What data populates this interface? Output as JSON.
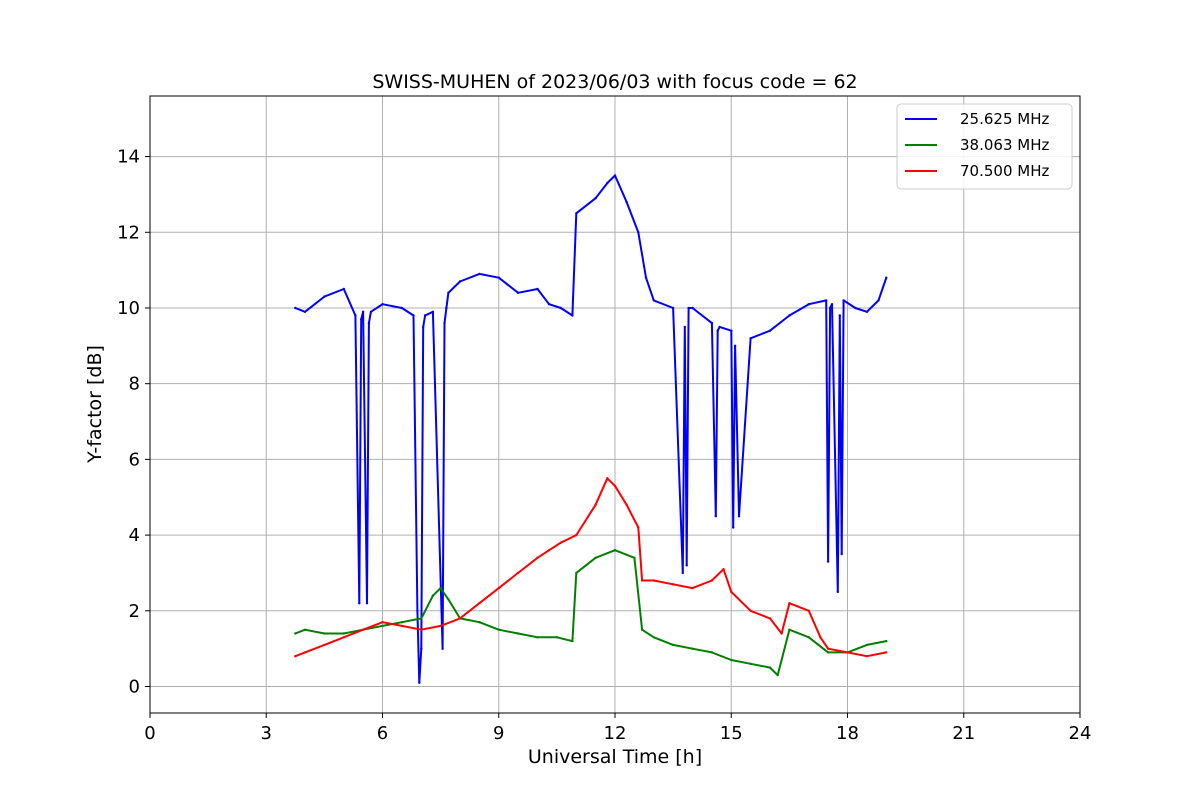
{
  "chart_data": {
    "type": "line",
    "title": "SWISS-MUHEN of 2023/06/03 with focus code = 62",
    "xlabel": "Universal Time [h]",
    "ylabel": "Y-factor [dB]",
    "xlim": [
      0,
      24
    ],
    "ylim": [
      -0.7,
      15.6
    ],
    "xticks": [
      0,
      3,
      6,
      9,
      12,
      15,
      18,
      21,
      24
    ],
    "yticks": [
      0,
      2,
      4,
      6,
      8,
      10,
      12,
      14
    ],
    "grid": true,
    "legend_position": "top-right",
    "series": [
      {
        "name": "25.625 MHz",
        "color": "#0000ff",
        "x": [
          3.75,
          4.0,
          4.5,
          5.0,
          5.3,
          5.4,
          5.45,
          5.5,
          5.6,
          5.65,
          5.7,
          6.0,
          6.5,
          6.8,
          6.9,
          6.95,
          7.0,
          7.05,
          7.1,
          7.3,
          7.55,
          7.6,
          7.65,
          7.7,
          8.0,
          8.5,
          9.0,
          9.5,
          10.0,
          10.3,
          10.6,
          10.9,
          11.0,
          11.5,
          11.8,
          12.0,
          12.3,
          12.6,
          12.8,
          13.0,
          13.5,
          13.75,
          13.8,
          13.85,
          13.9,
          14.0,
          14.5,
          14.6,
          14.65,
          14.7,
          15.0,
          15.05,
          15.1,
          15.2,
          15.5,
          16.0,
          16.5,
          17.0,
          17.45,
          17.5,
          17.55,
          17.6,
          17.75,
          17.8,
          17.85,
          17.9,
          18.2,
          18.5,
          18.8,
          19.0
        ],
        "values": [
          10.0,
          9.9,
          10.3,
          10.5,
          9.8,
          2.2,
          9.7,
          9.9,
          2.2,
          9.6,
          9.9,
          10.1,
          10.0,
          9.8,
          2.0,
          0.1,
          1.0,
          9.5,
          9.8,
          9.9,
          1.0,
          9.6,
          10.0,
          10.4,
          10.7,
          10.9,
          10.8,
          10.4,
          10.5,
          10.1,
          10.0,
          9.8,
          12.5,
          12.9,
          13.3,
          13.5,
          12.8,
          12.0,
          10.8,
          10.2,
          10.0,
          3.0,
          9.5,
          3.2,
          10.0,
          10.0,
          9.6,
          4.5,
          9.4,
          9.5,
          9.4,
          4.2,
          9.0,
          4.5,
          9.2,
          9.4,
          9.8,
          10.1,
          10.2,
          3.3,
          10.0,
          10.1,
          2.5,
          9.8,
          3.5,
          10.2,
          10.0,
          9.9,
          10.2,
          10.8
        ]
      },
      {
        "name": "38.063 MHz",
        "color": "#008000",
        "x": [
          3.75,
          4.0,
          4.5,
          5.0,
          5.5,
          6.0,
          6.5,
          7.0,
          7.3,
          7.5,
          7.7,
          8.0,
          8.5,
          9.0,
          9.5,
          10.0,
          10.5,
          10.9,
          11.0,
          11.5,
          12.0,
          12.5,
          12.7,
          13.0,
          13.5,
          14.0,
          14.5,
          15.0,
          15.5,
          16.0,
          16.2,
          16.5,
          17.0,
          17.5,
          18.0,
          18.5,
          19.0
        ],
        "values": [
          1.4,
          1.5,
          1.4,
          1.4,
          1.5,
          1.6,
          1.7,
          1.8,
          2.4,
          2.6,
          2.3,
          1.8,
          1.7,
          1.5,
          1.4,
          1.3,
          1.3,
          1.2,
          3.0,
          3.4,
          3.6,
          3.4,
          1.5,
          1.3,
          1.1,
          1.0,
          0.9,
          0.7,
          0.6,
          0.5,
          0.3,
          1.5,
          1.3,
          0.9,
          0.9,
          1.1,
          1.2
        ]
      },
      {
        "name": "70.500 MHz",
        "color": "#ff0000",
        "x": [
          3.75,
          4.0,
          4.5,
          5.0,
          5.5,
          6.0,
          6.5,
          7.0,
          7.5,
          8.0,
          8.5,
          9.0,
          9.5,
          10.0,
          10.3,
          10.6,
          11.0,
          11.5,
          11.8,
          12.0,
          12.3,
          12.6,
          12.7,
          13.0,
          13.5,
          14.0,
          14.5,
          14.8,
          15.0,
          15.5,
          16.0,
          16.3,
          16.5,
          17.0,
          17.3,
          17.5,
          18.0,
          18.5,
          19.0
        ],
        "values": [
          0.8,
          0.9,
          1.1,
          1.3,
          1.5,
          1.7,
          1.6,
          1.5,
          1.6,
          1.8,
          2.2,
          2.6,
          3.0,
          3.4,
          3.6,
          3.8,
          4.0,
          4.8,
          5.5,
          5.3,
          4.8,
          4.2,
          2.8,
          2.8,
          2.7,
          2.6,
          2.8,
          3.1,
          2.5,
          2.0,
          1.8,
          1.4,
          2.2,
          2.0,
          1.3,
          1.0,
          0.9,
          0.8,
          0.9
        ]
      }
    ]
  }
}
